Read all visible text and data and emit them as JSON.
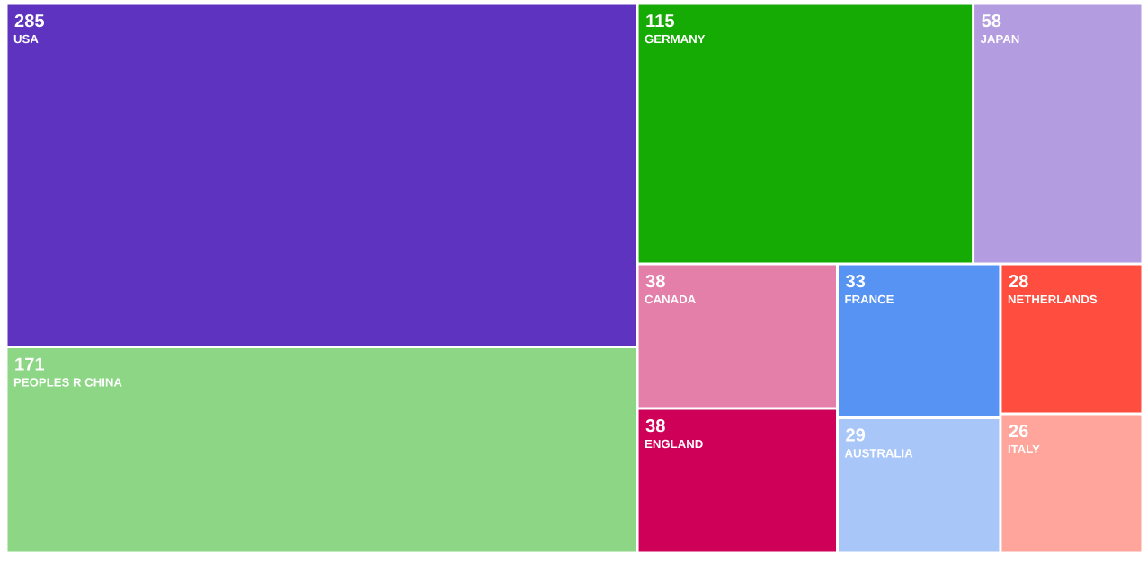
{
  "chart_data": {
    "type": "other",
    "categories": [
      "USA",
      "PEOPLES R CHINA",
      "GERMANY",
      "JAPAN",
      "CANADA",
      "ENGLAND",
      "FRANCE",
      "AUSTRALIA",
      "NETHERLANDS",
      "ITALY"
    ],
    "values": [
      285,
      171,
      115,
      58,
      38,
      38,
      33,
      29,
      28,
      26
    ],
    "colors": [
      "#5e33bf",
      "#8cd685",
      "#15ab04",
      "#b39ce0",
      "#e47faa",
      "#cf0058",
      "#5793f3",
      "#a8c6f8",
      "#ff4e3f",
      "#ffa59c"
    ],
    "data_labels": true
  }
}
